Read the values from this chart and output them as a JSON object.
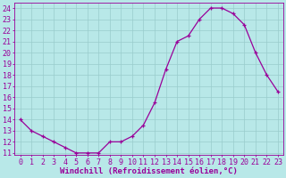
{
  "x": [
    0,
    1,
    2,
    3,
    4,
    5,
    6,
    7,
    8,
    9,
    10,
    11,
    12,
    13,
    14,
    15,
    16,
    17,
    18,
    19,
    20,
    21,
    22,
    23
  ],
  "y": [
    14,
    13,
    12.5,
    12,
    11.5,
    11,
    11,
    11,
    12,
    12,
    12.5,
    13.5,
    15.5,
    18.5,
    21,
    21.5,
    23,
    24,
    24,
    23.5,
    22.5,
    20,
    18,
    16.5
  ],
  "line_color": "#990099",
  "marker": "+",
  "bg_color": "#b8e8e8",
  "grid_color": "#99cccc",
  "xlabel": "Windchill (Refroidissement éolien,°C)",
  "ylabel_ticks": [
    11,
    12,
    13,
    14,
    15,
    16,
    17,
    18,
    19,
    20,
    21,
    22,
    23,
    24
  ],
  "ylim": [
    10.8,
    24.5
  ],
  "xlim": [
    -0.5,
    23.5
  ],
  "tick_color": "#990099",
  "label_color": "#990099",
  "font_size": 6,
  "xlabel_font_size": 6.5
}
